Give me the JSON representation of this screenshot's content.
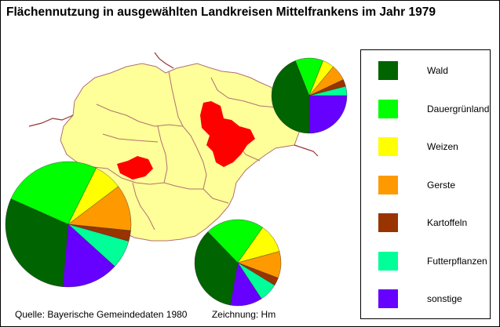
{
  "title": "Flächennutzung in ausgewählten Landkreisen Mittelfrankens im Jahr 1979",
  "footer": {
    "source": "Quelle: Bayerische Gemeindedaten 1980",
    "credit": "Zeichnung: Hm"
  },
  "colors": {
    "region_fill": "#ffff99",
    "selected_district": "#ff0000",
    "boundary": "#b07070",
    "river": "#993333"
  },
  "legend": [
    {
      "key": "wald",
      "label": "Wald",
      "color": "#006400"
    },
    {
      "key": "dauergruenland",
      "label": "Dauergrünland",
      "color": "#00ff00"
    },
    {
      "key": "weizen",
      "label": "Weizen",
      "color": "#ffff00"
    },
    {
      "key": "gerste",
      "label": "Gerste",
      "color": "#ff9900"
    },
    {
      "key": "kartoffeln",
      "label": "Kartoffeln",
      "color": "#993300"
    },
    {
      "key": "futterpflanzen",
      "label": "Futterpflanzen",
      "color": "#00ff99"
    },
    {
      "key": "sonstige",
      "label": "sonstige",
      "color": "#6600ff"
    }
  ],
  "chart_data": [
    {
      "type": "pie",
      "location": "nordost",
      "series": [
        {
          "name": "Wald",
          "value": 44
        },
        {
          "name": "Dauergrünland",
          "value": 12
        },
        {
          "name": "Weizen",
          "value": 5
        },
        {
          "name": "Gerste",
          "value": 7
        },
        {
          "name": "Kartoffeln",
          "value": 3
        },
        {
          "name": "Futterpflanzen",
          "value": 4
        },
        {
          "name": "sonstige",
          "value": 25
        }
      ]
    },
    {
      "type": "pie",
      "location": "west",
      "series": [
        {
          "name": "Wald",
          "value": 33
        },
        {
          "name": "Dauergrünland",
          "value": 28
        },
        {
          "name": "Weizen",
          "value": 8
        },
        {
          "name": "Gerste",
          "value": 13
        },
        {
          "name": "Kartoffeln",
          "value": 3
        },
        {
          "name": "Futterpflanzen",
          "value": 8
        },
        {
          "name": "sonstige",
          "value": 16
        }
      ]
    },
    {
      "type": "pie",
      "location": "süd",
      "series": [
        {
          "name": "Wald",
          "value": 35
        },
        {
          "name": "Dauergrünland",
          "value": 22
        },
        {
          "name": "Weizen",
          "value": 11
        },
        {
          "name": "Gerste",
          "value": 10
        },
        {
          "name": "Kartoffeln",
          "value": 3
        },
        {
          "name": "Futterpflanzen",
          "value": 7
        },
        {
          "name": "sonstige",
          "value": 12
        }
      ]
    }
  ]
}
